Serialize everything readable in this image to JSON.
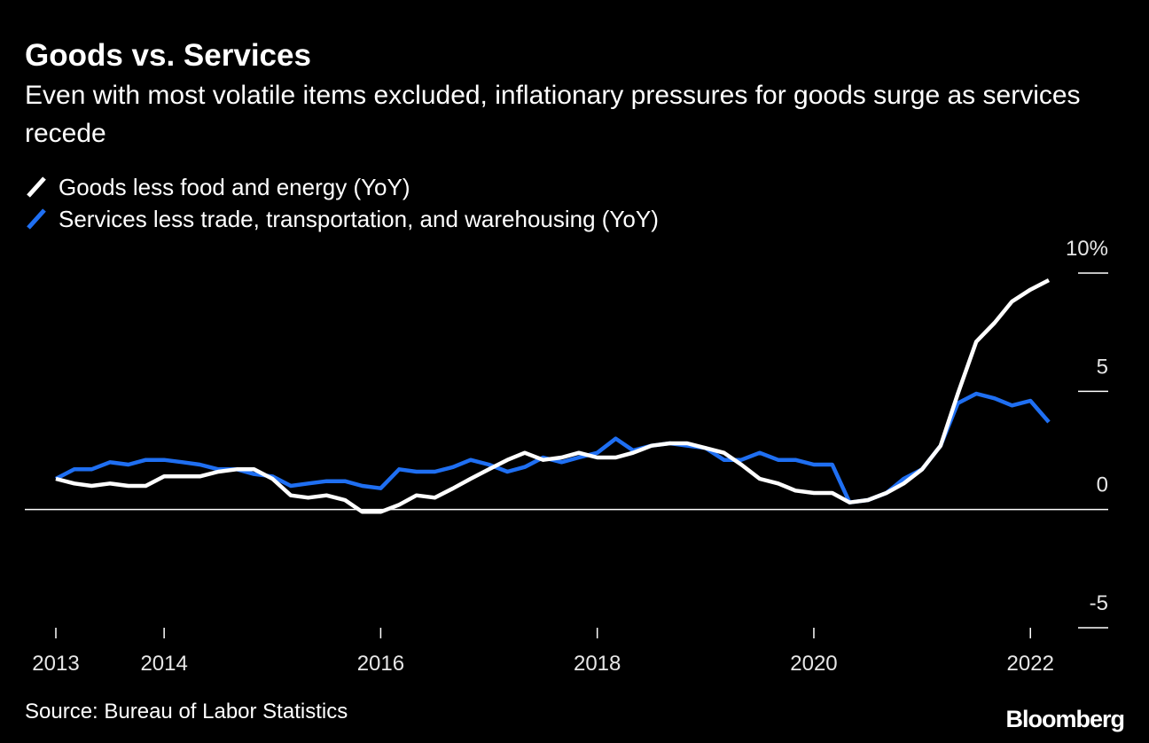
{
  "chart_data": {
    "type": "line",
    "title": "Goods vs. Services",
    "subtitle": "Even with most volatile items excluded, inflationary pressures for goods surge as services recede",
    "source": "Source: Bureau of Labor Statistics",
    "brand": "Bloomberg",
    "x": [
      2013.0,
      2013.17,
      2013.33,
      2013.5,
      2013.67,
      2013.83,
      2014.0,
      2014.17,
      2014.33,
      2014.5,
      2014.67,
      2014.83,
      2015.0,
      2015.17,
      2015.33,
      2015.5,
      2015.67,
      2015.83,
      2016.0,
      2016.17,
      2016.33,
      2016.5,
      2016.67,
      2016.83,
      2017.0,
      2017.17,
      2017.33,
      2017.5,
      2017.67,
      2017.83,
      2018.0,
      2018.17,
      2018.33,
      2018.5,
      2018.67,
      2018.83,
      2019.0,
      2019.17,
      2019.33,
      2019.5,
      2019.67,
      2019.83,
      2020.0,
      2020.17,
      2020.33,
      2020.5,
      2020.67,
      2020.83,
      2021.0,
      2021.17,
      2021.33,
      2021.5,
      2021.67,
      2021.83,
      2022.0,
      2022.17
    ],
    "series": [
      {
        "name": "Goods less food and energy (YoY)",
        "color": "#ffffff",
        "values": [
          1.3,
          1.1,
          1.0,
          1.1,
          1.0,
          1.0,
          1.4,
          1.4,
          1.4,
          1.6,
          1.7,
          1.7,
          1.3,
          0.6,
          0.5,
          0.6,
          0.4,
          -0.1,
          -0.1,
          0.2,
          0.6,
          0.5,
          0.9,
          1.3,
          1.7,
          2.1,
          2.4,
          2.1,
          2.2,
          2.4,
          2.2,
          2.2,
          2.4,
          2.7,
          2.8,
          2.8,
          2.6,
          2.4,
          1.9,
          1.3,
          1.1,
          0.8,
          0.7,
          0.7,
          0.3,
          0.4,
          0.7,
          1.1,
          1.7,
          2.7,
          4.9,
          7.1,
          7.9,
          8.8,
          9.3,
          9.7
        ]
      },
      {
        "name": "Services less trade, transportation, and warehousing (YoY)",
        "color": "#1f6ff2",
        "values": [
          1.3,
          1.7,
          1.7,
          2.0,
          1.9,
          2.1,
          2.1,
          2.0,
          1.9,
          1.7,
          1.7,
          1.5,
          1.4,
          1.0,
          1.1,
          1.2,
          1.2,
          1.0,
          0.9,
          1.7,
          1.6,
          1.6,
          1.8,
          2.1,
          1.9,
          1.6,
          1.8,
          2.2,
          2.0,
          2.2,
          2.4,
          3.0,
          2.5,
          2.7,
          2.8,
          2.7,
          2.6,
          2.1,
          2.1,
          2.4,
          2.1,
          2.1,
          1.9,
          1.9,
          0.3,
          0.4,
          0.7,
          1.3,
          1.7,
          2.7,
          4.5,
          4.9,
          4.7,
          4.4,
          4.6,
          3.7
        ]
      }
    ],
    "xlim": [
      2013.0,
      2022.17
    ],
    "xticks": [
      2013,
      2014,
      2016,
      2018,
      2020,
      2022
    ],
    "ylim": [
      -5,
      10
    ],
    "yticks": [
      -5,
      0,
      5,
      {
        "value": 10,
        "label": "10%"
      }
    ]
  }
}
